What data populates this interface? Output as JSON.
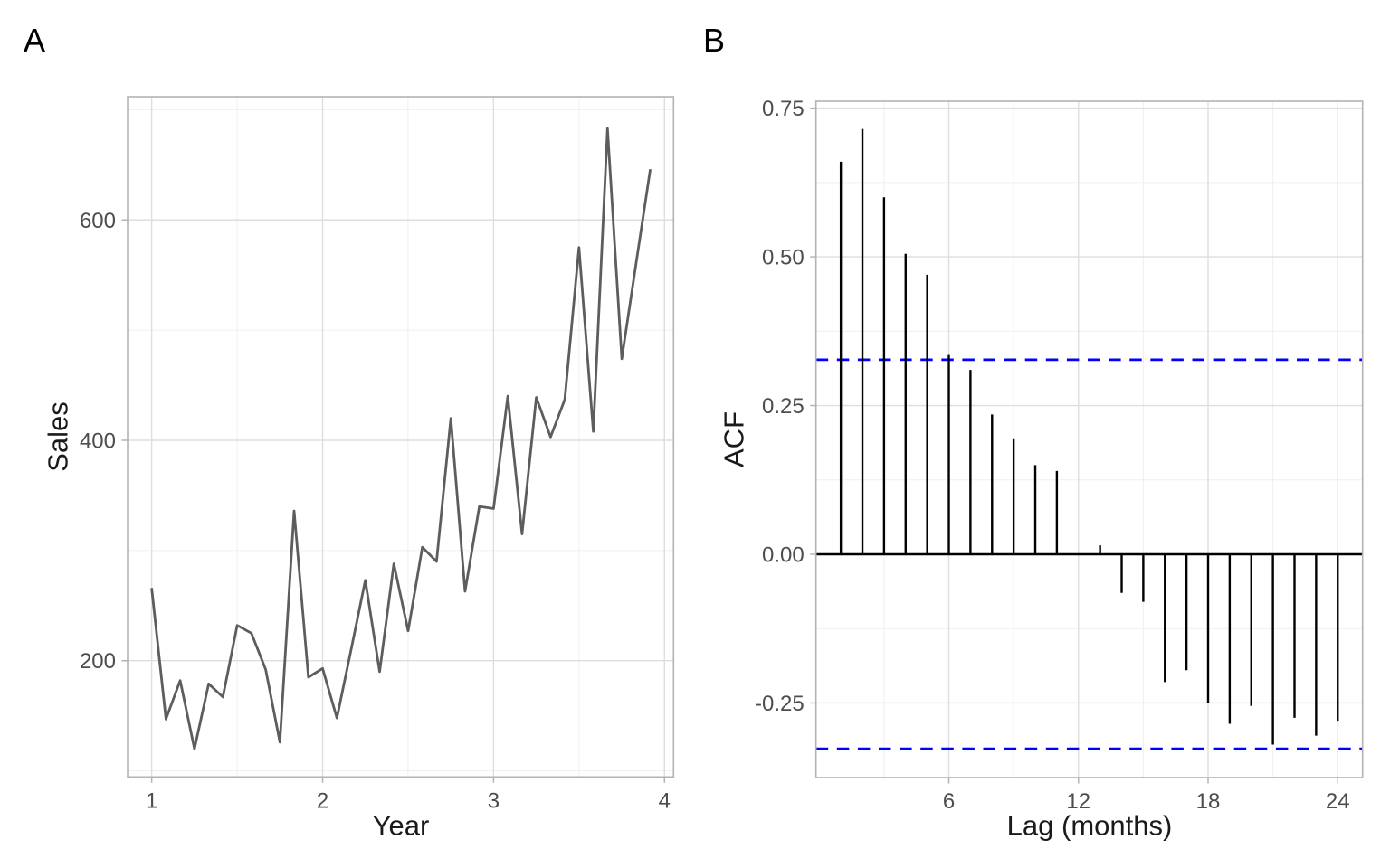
{
  "style": {
    "background": "#ffffff",
    "panel_border": "#b3b3b3",
    "grid_major": "#dedede",
    "grid_minor": "#efefef",
    "tick_color": "#b3b3b3",
    "tick_label_color": "#4d4d4d",
    "title_color": "#1a1a1a",
    "tag_color": "#000000"
  },
  "chart_data": [
    {
      "type": "line",
      "tag": "A",
      "xlabel": "Year",
      "ylabel": "Sales",
      "x_tick_values": [
        1,
        2,
        3,
        4
      ],
      "x_tick_labels": [
        "1",
        "2",
        "3",
        "4"
      ],
      "y_tick_values": [
        200,
        400,
        600
      ],
      "y_tick_labels": [
        "200",
        "400",
        "600"
      ],
      "x_minor_ticks": [
        1.5,
        2.5,
        3.5
      ],
      "y_minor_ticks": [
        100,
        300,
        500,
        700
      ],
      "xlim": [
        0.859,
        4.053
      ],
      "ylim": [
        94.5,
        711.8
      ],
      "grid": true,
      "line_color": "#5d5d5d",
      "series": [
        {
          "name": "Sales",
          "x": [
            1.0,
            1.0833,
            1.1667,
            1.25,
            1.3333,
            1.4167,
            1.5,
            1.5833,
            1.6667,
            1.75,
            1.8333,
            1.9167,
            2.0,
            2.0833,
            2.1667,
            2.25,
            2.3333,
            2.4167,
            2.5,
            2.5833,
            2.6667,
            2.75,
            2.8333,
            2.9167,
            3.0,
            3.0833,
            3.1667,
            3.25,
            3.3333,
            3.4167,
            3.5,
            3.5833,
            3.6667,
            3.75,
            3.8333,
            3.9167
          ],
          "y": [
            266,
            147,
            182,
            120,
            179,
            167,
            232,
            225,
            192,
            126,
            336,
            185,
            193,
            148,
            210,
            273,
            190,
            288,
            227,
            303,
            290,
            420,
            263,
            340,
            338,
            440,
            315,
            439,
            403,
            437,
            575,
            408,
            683,
            474,
            560,
            646
          ]
        }
      ]
    },
    {
      "type": "acf-bar",
      "tag": "B",
      "xlabel": "Lag (months)",
      "ylabel": "ACF",
      "x_tick_values": [
        6,
        12,
        18,
        24
      ],
      "x_tick_labels": [
        "6",
        "12",
        "18",
        "24"
      ],
      "y_tick_values": [
        0.75,
        0.5,
        0.25,
        0.0,
        -0.25
      ],
      "y_tick_labels": [
        "0.75",
        "0.50",
        "0.25",
        "0.00",
        "-0.25"
      ],
      "x_minor_ticks": [
        3,
        9,
        15,
        21
      ],
      "y_minor_ticks": [
        0.625,
        0.375,
        0.125,
        -0.125
      ],
      "xlim": [
        -0.15,
        25.15
      ],
      "ylim": [
        -0.3755,
        0.7616
      ],
      "grid": true,
      "lags": [
        1,
        2,
        3,
        4,
        5,
        6,
        7,
        8,
        9,
        10,
        11,
        12,
        13,
        14,
        15,
        16,
        17,
        18,
        19,
        20,
        21,
        22,
        23,
        24
      ],
      "values": [
        0.66,
        0.715,
        0.6,
        0.505,
        0.47,
        0.335,
        0.31,
        0.235,
        0.195,
        0.15,
        0.14,
        0.0,
        0.015,
        -0.065,
        -0.08,
        -0.215,
        -0.195,
        -0.25,
        -0.285,
        -0.255,
        -0.32,
        -0.275,
        -0.305,
        -0.28
      ],
      "zero_line": 0,
      "conf_bounds": [
        0.327,
        -0.327
      ],
      "bar_color": "#000000",
      "zero_line_color": "#000000",
      "conf_color": "#0000ff"
    }
  ]
}
